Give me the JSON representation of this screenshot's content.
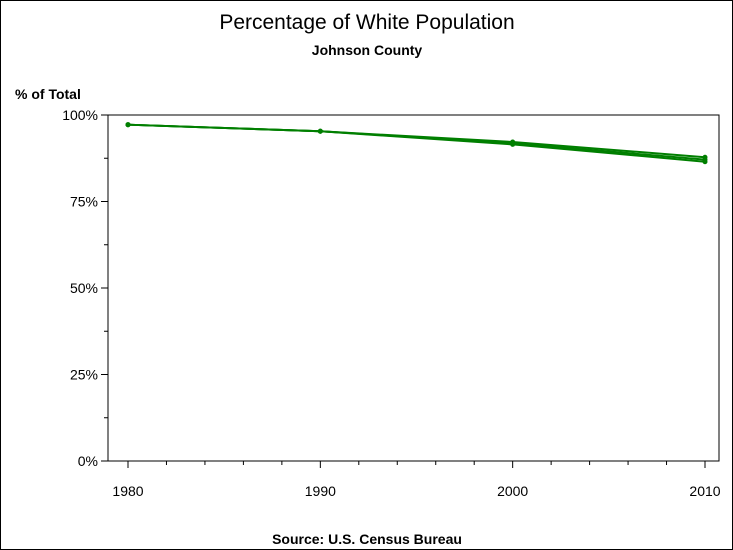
{
  "chart_data": {
    "type": "line",
    "title": "Percentage of White Population",
    "subtitle": "Johnson County",
    "ylabel": "% of Total",
    "xlabel": "",
    "footnote": "Source: U.S. Census Bureau",
    "x": [
      1980,
      1990,
      2000,
      2010
    ],
    "x_tick_labels": [
      "1980",
      "1990",
      "2000",
      "2010"
    ],
    "xlim": [
      1980,
      2010
    ],
    "y_ticks": [
      0,
      25,
      50,
      75,
      100
    ],
    "y_tick_labels": [
      "0%",
      "25%",
      "50%",
      "75%",
      "100%"
    ],
    "ylim": [
      0,
      100
    ],
    "series": [
      {
        "values": [
          97.2,
          95.3,
          91.5,
          86.5
        ]
      },
      {
        "values": [
          97.2,
          95.3,
          92.2,
          87.8
        ]
      },
      {
        "values": [
          97.2,
          95.3,
          91.8,
          87.1
        ]
      }
    ],
    "line_color": "#007f00",
    "grid": false
  }
}
